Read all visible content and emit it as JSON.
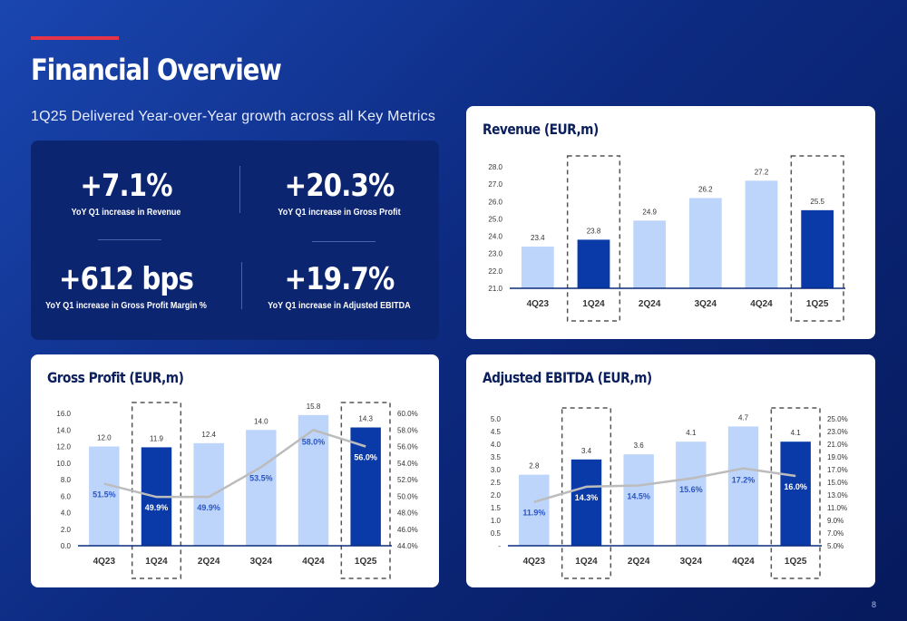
{
  "page": {
    "title": "Financial Overview",
    "subtitle": "1Q25 Delivered Year-over-Year growth across all Key Metrics",
    "page_number": "8",
    "colors": {
      "accent": "#e5344a",
      "bar_light": "#bdd4fb",
      "bar_dark": "#0a3aa8",
      "line": "#bcbcbc",
      "title_dark": "#0a1f5c"
    }
  },
  "kpis": [
    {
      "value": "+7.1%",
      "label": "YoY Q1 increase in Revenue"
    },
    {
      "value": "+20.3%",
      "label": "YoY Q1 increase in Gross Profit"
    },
    {
      "value": "+612 bps",
      "label": "YoY Q1 increase in Gross Profit Margin %"
    },
    {
      "value": "+19.7%",
      "label": "YoY Q1 increase in Adjusted EBITDA"
    }
  ],
  "chart_data": [
    {
      "id": "revenue",
      "type": "bar",
      "title": "Revenue (EUR,m)",
      "categories": [
        "4Q23",
        "1Q24",
        "2Q24",
        "3Q24",
        "4Q24",
        "1Q25"
      ],
      "values": [
        23.4,
        23.8,
        24.9,
        26.2,
        27.2,
        25.5
      ],
      "value_labels": [
        "23.4",
        "23.8",
        "24.9",
        "26.2",
        "27.2",
        "25.5"
      ],
      "highlighted": [
        "1Q24",
        "1Q25"
      ],
      "ylim": [
        21.0,
        28.0
      ],
      "yticks": [
        "21.0",
        "22.0",
        "23.0",
        "24.0",
        "25.0",
        "26.0",
        "27.0",
        "28.0"
      ],
      "grid": false
    },
    {
      "id": "gross-profit",
      "type": "bar",
      "title": "Gross Profit (EUR,m)",
      "categories": [
        "4Q23",
        "1Q24",
        "2Q24",
        "3Q24",
        "4Q24",
        "1Q25"
      ],
      "values": [
        12.0,
        11.9,
        12.4,
        14.0,
        15.8,
        14.3
      ],
      "value_labels": [
        "12.0",
        "11.9",
        "12.4",
        "14.0",
        "15.8",
        "14.3"
      ],
      "line_values": [
        51.5,
        49.9,
        49.9,
        53.5,
        58.0,
        56.0
      ],
      "line_labels": [
        "51.5%",
        "49.9%",
        "49.9%",
        "53.5%",
        "58.0%",
        "56.0%"
      ],
      "highlighted": [
        "1Q24",
        "1Q25"
      ],
      "ylim": [
        0,
        16
      ],
      "yticks": [
        "0.0",
        "2.0",
        "4.0",
        "6.0",
        "8.0",
        "10.0",
        "12.0",
        "14.0",
        "16.0"
      ],
      "y2lim": [
        44,
        60
      ],
      "y2ticks": [
        "44.0%",
        "46.0%",
        "48.0%",
        "50.0%",
        "52.0%",
        "54.0%",
        "56.0%",
        "58.0%",
        "60.0%"
      ],
      "grid": false
    },
    {
      "id": "adjusted-ebitda",
      "type": "bar",
      "title": "Adjusted EBITDA (EUR,m)",
      "categories": [
        "4Q23",
        "1Q24",
        "2Q24",
        "3Q24",
        "4Q24",
        "1Q25"
      ],
      "values": [
        2.8,
        3.4,
        3.6,
        4.1,
        4.7,
        4.1
      ],
      "value_labels": [
        "2.8",
        "3.4",
        "3.6",
        "4.1",
        "4.7",
        "4.1"
      ],
      "line_values": [
        11.9,
        14.3,
        14.5,
        15.6,
        17.2,
        16.0
      ],
      "line_labels": [
        "11.9%",
        "14.3%",
        "14.5%",
        "15.6%",
        "17.2%",
        "16.0%"
      ],
      "highlighted": [
        "1Q24",
        "1Q25"
      ],
      "ylim": [
        0,
        5
      ],
      "yticks": [
        "-",
        "0.5",
        "1.0",
        "1.5",
        "2.0",
        "2.5",
        "3.0",
        "3.5",
        "4.0",
        "4.5",
        "5.0"
      ],
      "y2lim": [
        5,
        25
      ],
      "y2ticks": [
        "5.0%",
        "7.0%",
        "9.0%",
        "11.0%",
        "13.0%",
        "15.0%",
        "17.0%",
        "19.0%",
        "21.0%",
        "23.0%",
        "25.0%"
      ],
      "grid": false
    }
  ]
}
